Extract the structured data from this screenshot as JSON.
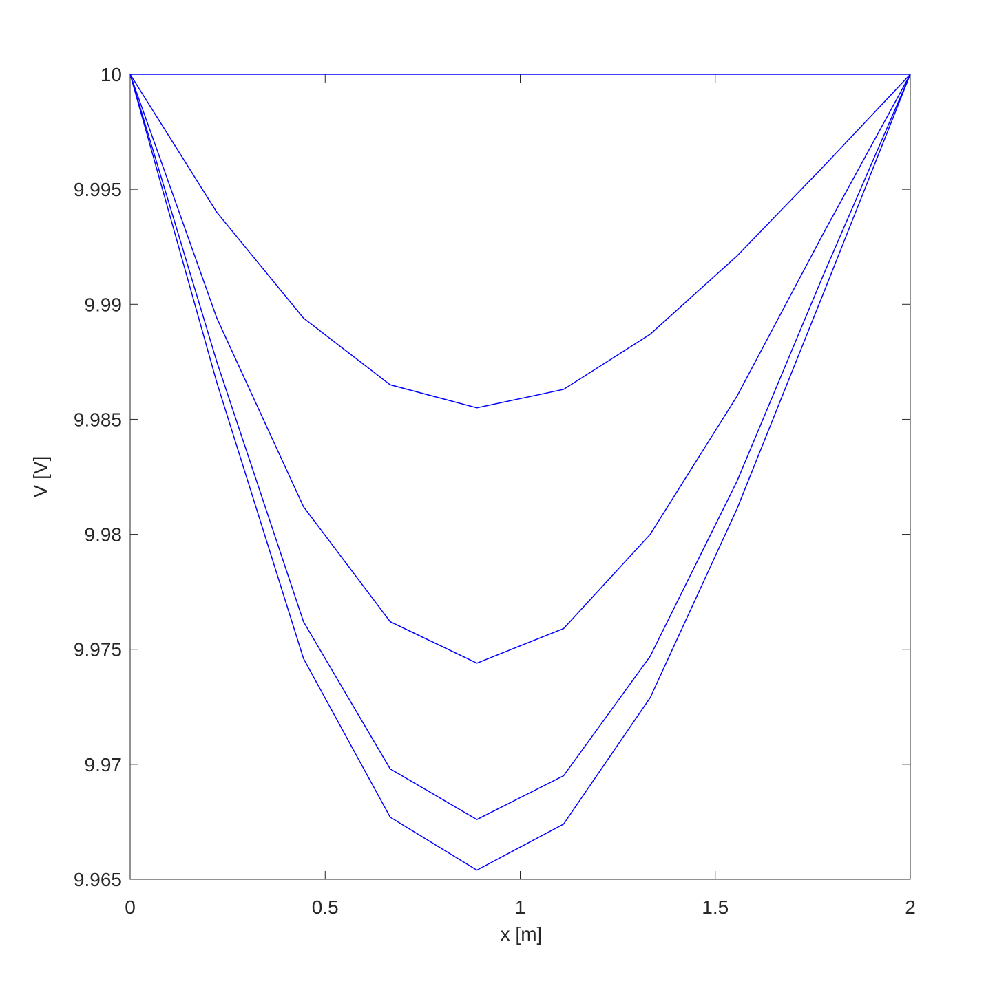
{
  "chart_data": {
    "type": "line",
    "x_label": "x  [m]",
    "y_label": "V  [V]",
    "x": [
      0,
      0.2222,
      0.4444,
      0.6667,
      0.8889,
      1.1111,
      1.3333,
      1.5556,
      1.7778,
      2
    ],
    "series": [
      {
        "color": "#0000ff",
        "values": [
          10,
          10,
          10,
          10,
          10,
          10,
          10,
          10,
          10,
          10
        ]
      },
      {
        "color": "#0000ff",
        "values": [
          10,
          9.994,
          9.9894,
          9.9865,
          9.9855,
          9.9863,
          9.9887,
          9.9921,
          9.996,
          10
        ]
      },
      {
        "color": "#0000ff",
        "values": [
          10,
          9.9894,
          9.9812,
          9.9762,
          9.9744,
          9.9759,
          9.98,
          9.986,
          9.9931,
          10
        ]
      },
      {
        "color": "#0000ff",
        "values": [
          10,
          9.9875,
          9.9762,
          9.9698,
          9.9676,
          9.9695,
          9.9747,
          9.9823,
          9.9913,
          10
        ]
      },
      {
        "color": "#0000ff",
        "values": [
          10,
          9.9866,
          9.9746,
          9.9677,
          9.9654,
          9.9674,
          9.9729,
          9.9811,
          9.9905,
          10
        ]
      }
    ],
    "xlim": [
      0,
      2
    ],
    "xticks": [
      0,
      0.5,
      1,
      1.5,
      2
    ],
    "ylim": [
      9.965,
      10
    ],
    "yticks": [
      9.965,
      9.97,
      9.975,
      9.98,
      9.985,
      9.99,
      9.995,
      10
    ],
    "grid": false
  }
}
